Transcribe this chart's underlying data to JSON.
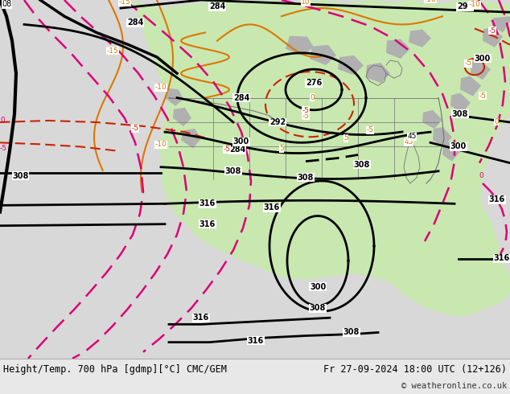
{
  "title_left": "Height/Temp. 700 hPa [gdmp][°C] CMC/GEM",
  "title_right": "Fr 27-09-2024 18:00 UTC (12+126)",
  "copyright": "© weatheronline.co.uk",
  "fig_width": 6.34,
  "fig_height": 4.9,
  "dpi": 100,
  "bg_color": "#e8e8e8",
  "ocean_color": "#d8d8d8",
  "land_green": "#c8e8b0",
  "land_gray": "#b0b0b0",
  "border_color": "#808080",
  "black_contour_color": "#000000",
  "orange_contour_color": "#dd7700",
  "red_contour_color": "#cc2200",
  "pink_contour_color": "#dd0077",
  "bottom_bar_color": "#e8e8e8",
  "bottom_text_color": "#000000"
}
